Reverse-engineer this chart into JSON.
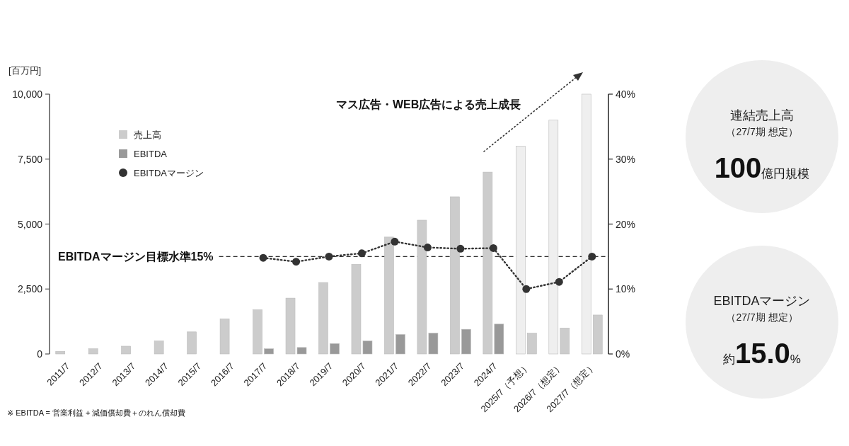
{
  "chart_data": [
    {
      "type": "bar",
      "ylabel": "[百万円]",
      "categories": [
        "2011/7",
        "2012/7",
        "2013/7",
        "2014/7",
        "2015/7",
        "2016/7",
        "2017/7",
        "2018/7",
        "2019/7",
        "2020/7",
        "2021/7",
        "2022/7",
        "2023/7",
        "2024/7",
        "2025/7（予想）",
        "2026/7（想定）",
        "2027/7（想定）"
      ],
      "series": [
        {
          "name": "売上高",
          "type": "bar",
          "color": "#cccccc",
          "colors": [
            "#cccccc",
            "#cccccc",
            "#cccccc",
            "#cccccc",
            "#cccccc",
            "#cccccc",
            "#cccccc",
            "#cccccc",
            "#cccccc",
            "#cccccc",
            "#cccccc",
            "#cccccc",
            "#cccccc",
            "#cccccc",
            "#efefef",
            "#efefef",
            "#efefef"
          ],
          "values": [
            100,
            200,
            300,
            500,
            850,
            1350,
            1700,
            2150,
            2750,
            3450,
            4500,
            5150,
            6050,
            7000,
            8000,
            9000,
            10000
          ]
        },
        {
          "name": "EBITDA",
          "type": "bar",
          "color": "#999999",
          "colors": [
            null,
            null,
            null,
            null,
            null,
            null,
            "#999999",
            "#999999",
            "#999999",
            "#999999",
            "#999999",
            "#999999",
            "#999999",
            "#999999",
            "#cccccc",
            "#cccccc",
            "#cccccc"
          ],
          "values": [
            null,
            null,
            null,
            null,
            null,
            null,
            200,
            250,
            400,
            500,
            750,
            800,
            950,
            1150,
            800,
            1000,
            1500
          ]
        },
        {
          "name": "EBITDAマージン",
          "type": "line",
          "axis": "y2",
          "color": "#333333",
          "marker": "circle",
          "line_style": "dotted",
          "values": [
            null,
            null,
            null,
            null,
            null,
            null,
            14.8,
            14.2,
            15.0,
            15.5,
            17.3,
            16.4,
            16.2,
            16.3,
            10.0,
            11.1,
            15.0
          ]
        }
      ],
      "ylim": [
        0,
        10000
      ],
      "yticks": [
        0,
        {
          "value": 2500,
          "label": "2,500"
        },
        {
          "value": 5000,
          "label": "5,000"
        },
        {
          "value": 7500,
          "label": "7,500"
        },
        {
          "value": 10000,
          "label": "10,000"
        }
      ],
      "y2lim": [
        0,
        40
      ],
      "y2ticks": [
        {
          "value": 0,
          "label": "0%"
        },
        {
          "value": 10,
          "label": "10%"
        },
        {
          "value": 20,
          "label": "20%"
        },
        {
          "value": 30,
          "label": "30%"
        },
        {
          "value": 40,
          "label": "40%"
        }
      ],
      "ref_lines": [
        {
          "axis": "y2",
          "value": 15,
          "label": "EBITDAマージン目標水準15%",
          "color": "#333333",
          "line_style": "dashed"
        }
      ],
      "legend": "top left",
      "annotations": [
        "マス広告・WEB広告による売上成長",
        "※ EBITDA = 営業利益 + 減価償却費＋のれん償却費"
      ]
    },
    {
      "type": "other",
      "title": "連結売上高",
      "subtitle": "（27/7期 想定）",
      "annotations": [
        "**100**億円規模"
      ]
    },
    {
      "type": "other",
      "title": "EBITDAマージン",
      "subtitle": "（27/7期 想定）",
      "annotations": [
        "約**15.0**%"
      ]
    }
  ]
}
